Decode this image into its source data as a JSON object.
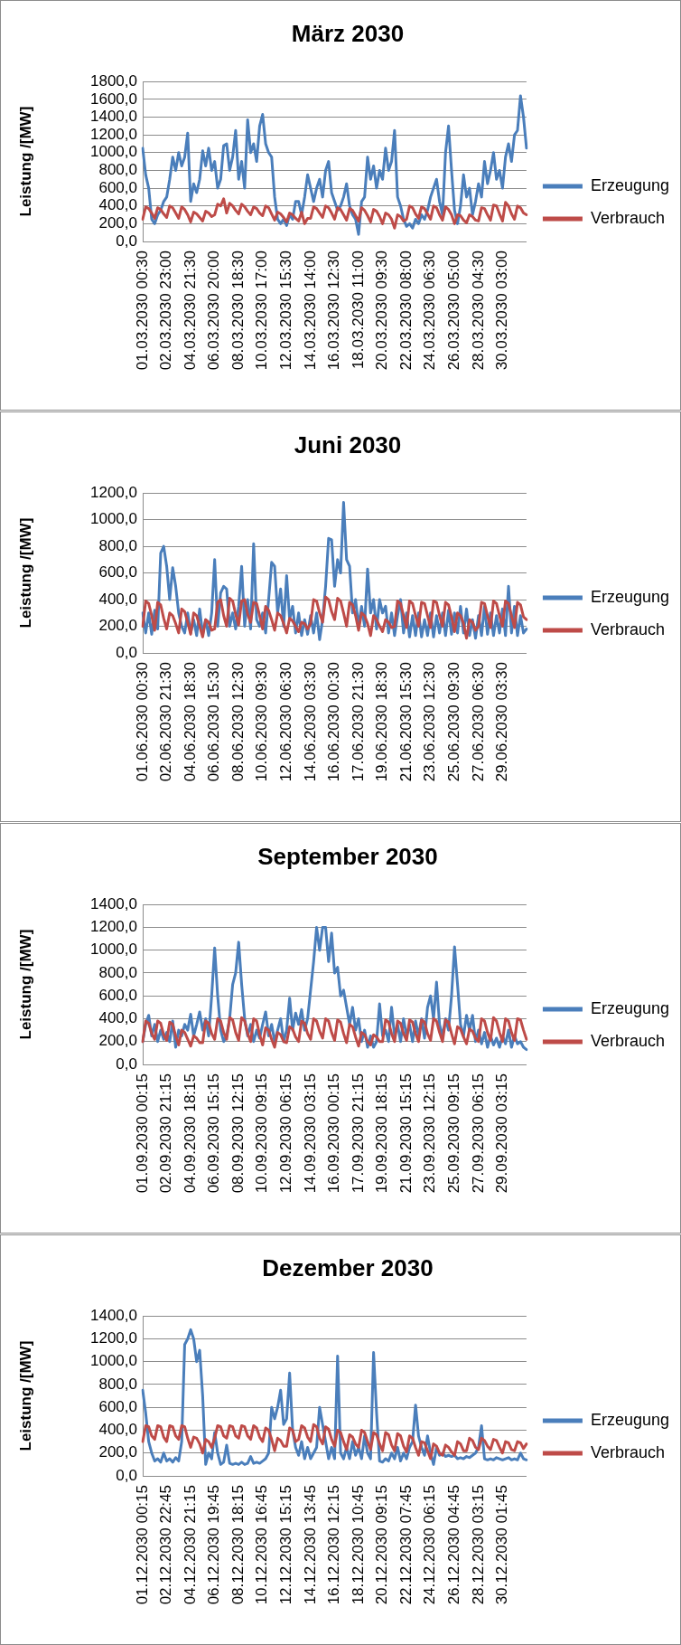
{
  "chart_data": [
    {
      "type": "line",
      "title": "März 2030",
      "ylabel": "Leistung /[MW]",
      "categories": [
        "01.03.2030 00:30",
        null,
        null,
        null,
        null,
        null,
        null,
        null,
        "02.03.2030 23:00",
        null,
        null,
        null,
        null,
        null,
        null,
        null,
        "04.03.2030 21:30",
        null,
        null,
        null,
        null,
        null,
        null,
        null,
        "06.03.2030 20:00",
        null,
        null,
        null,
        null,
        null,
        null,
        null,
        "08.03.2030 18:30",
        null,
        null,
        null,
        null,
        null,
        null,
        null,
        "10.03.2030 17:00",
        null,
        null,
        null,
        null,
        null,
        null,
        null,
        "12.03.2030 15:30",
        null,
        null,
        null,
        null,
        null,
        null,
        null,
        "14.03.2030 14:00",
        null,
        null,
        null,
        null,
        null,
        null,
        null,
        "16.03.2030 12:30",
        null,
        null,
        null,
        null,
        null,
        null,
        null,
        "18.03.2030 11:00",
        null,
        null,
        null,
        null,
        null,
        null,
        null,
        "20.03.2030 09:30",
        null,
        null,
        null,
        null,
        null,
        null,
        null,
        "22.03.2030 08:00",
        null,
        null,
        null,
        null,
        null,
        null,
        null,
        "24.03.2030 06:30",
        null,
        null,
        null,
        null,
        null,
        null,
        null,
        "26.03.2030 05:00",
        null,
        null,
        null,
        null,
        null,
        null,
        null,
        "28.03.2030 04:30",
        null,
        null,
        null,
        null,
        null,
        null,
        null,
        "30.03.2030 03:00",
        null,
        null,
        null,
        null,
        null,
        null,
        null,
        null
      ],
      "series": [
        {
          "name": "Erzeugung",
          "color": "#4a7ebb",
          "values": [
            1050,
            750,
            600,
            250,
            200,
            300,
            350,
            450,
            500,
            700,
            950,
            800,
            1000,
            850,
            950,
            1220,
            450,
            650,
            550,
            700,
            1020,
            850,
            1050,
            800,
            900,
            600,
            700,
            1080,
            1100,
            800,
            950,
            1250,
            700,
            900,
            600,
            1370,
            1000,
            1100,
            900,
            1300,
            1430,
            1100,
            1000,
            950,
            500,
            250,
            200,
            250,
            180,
            300,
            250,
            450,
            450,
            300,
            500,
            750,
            600,
            450,
            600,
            700,
            500,
            800,
            900,
            550,
            450,
            350,
            400,
            500,
            650,
            400,
            300,
            250,
            80,
            450,
            500,
            950,
            700,
            850,
            600,
            800,
            700,
            1050,
            800,
            900,
            1250,
            500,
            400,
            250,
            170,
            200,
            150,
            250,
            200,
            300,
            250,
            350,
            500,
            600,
            700,
            450,
            300,
            1000,
            1300,
            800,
            350,
            200,
            400,
            750,
            500,
            600,
            300,
            450,
            650,
            500,
            900,
            650,
            800,
            1000,
            700,
            800,
            600,
            950,
            1100,
            900,
            1200,
            1250,
            1640,
            1400,
            1050
          ]
        },
        {
          "name": "Verbrauch",
          "color": "#be4b48",
          "values": [
            250,
            390,
            370,
            320,
            260,
            380,
            360,
            310,
            270,
            400,
            380,
            320,
            260,
            390,
            360,
            300,
            220,
            330,
            310,
            270,
            230,
            340,
            320,
            280,
            300,
            420,
            400,
            480,
            320,
            430,
            400,
            350,
            310,
            420,
            390,
            340,
            300,
            390,
            370,
            320,
            290,
            400,
            380,
            310,
            240,
            330,
            310,
            270,
            220,
            320,
            300,
            260,
            230,
            330,
            200,
            260,
            260,
            390,
            370,
            320,
            270,
            400,
            380,
            320,
            250,
            380,
            360,
            300,
            240,
            370,
            350,
            290,
            230,
            380,
            350,
            290,
            220,
            360,
            340,
            280,
            200,
            320,
            300,
            250,
            150,
            300,
            280,
            230,
            250,
            400,
            380,
            310,
            260,
            390,
            370,
            310,
            250,
            400,
            380,
            300,
            240,
            390,
            360,
            300,
            200,
            300,
            290,
            240,
            210,
            300,
            280,
            240,
            230,
            380,
            370,
            300,
            240,
            410,
            400,
            310,
            230,
            440,
            400,
            310,
            250,
            400,
            380,
            320,
            300
          ]
        }
      ],
      "ylim": [
        0,
        1800
      ],
      "yticks": [
        {
          "value": 0,
          "label": "0,0"
        },
        {
          "value": 200,
          "label": "200,0"
        },
        {
          "value": 400,
          "label": "400,0"
        },
        {
          "value": 600,
          "label": "600,0"
        },
        {
          "value": 800,
          "label": "800,0"
        },
        {
          "value": 1000,
          "label": "1000,0"
        },
        {
          "value": 1200,
          "label": "1200,0"
        },
        {
          "value": 1400,
          "label": "1400,0"
        },
        {
          "value": 1600,
          "label": "1600,0"
        },
        {
          "value": 1800,
          "label": "1800,0"
        }
      ],
      "grid": "y",
      "legend": "right",
      "marker": "none",
      "line_style": "solid"
    },
    {
      "type": "line",
      "title": "Juni 2030",
      "ylabel": "Leistung /[MW]",
      "categories": [
        "01.06.2030 00:30",
        null,
        null,
        null,
        null,
        null,
        null,
        null,
        "02.06.2030 21:30",
        null,
        null,
        null,
        null,
        null,
        null,
        null,
        "04.06.2030 18:30",
        null,
        null,
        null,
        null,
        null,
        null,
        null,
        "06.06.2030 15:30",
        null,
        null,
        null,
        null,
        null,
        null,
        null,
        "08.06.2030 12:30",
        null,
        null,
        null,
        null,
        null,
        null,
        null,
        "10.06.2030 09:30",
        null,
        null,
        null,
        null,
        null,
        null,
        null,
        "12.06.2030 06:30",
        null,
        null,
        null,
        null,
        null,
        null,
        null,
        "14.06.2030 03:30",
        null,
        null,
        null,
        null,
        null,
        null,
        null,
        "16.06.2030 00:30",
        null,
        null,
        null,
        null,
        null,
        null,
        null,
        "17.06.2030 21:30",
        null,
        null,
        null,
        null,
        null,
        null,
        null,
        "19.06.2030 18:30",
        null,
        null,
        null,
        null,
        null,
        null,
        null,
        "21.06.2030 15:30",
        null,
        null,
        null,
        null,
        null,
        null,
        null,
        "23.06.2030 12:30",
        null,
        null,
        null,
        null,
        null,
        null,
        null,
        "25.06.2030 09:30",
        null,
        null,
        null,
        null,
        null,
        null,
        null,
        "27.06.2030 06:30",
        null,
        null,
        null,
        null,
        null,
        null,
        null,
        "29.06.2030 03:30",
        null,
        null,
        null,
        null,
        null,
        null,
        null,
        null
      ],
      "series": [
        {
          "name": "Erzeugung",
          "color": "#4a7ebb",
          "values": [
            300,
            150,
            300,
            140,
            320,
            180,
            750,
            800,
            650,
            400,
            640,
            500,
            300,
            200,
            150,
            300,
            150,
            250,
            130,
            330,
            140,
            250,
            130,
            300,
            700,
            200,
            450,
            500,
            480,
            200,
            300,
            180,
            350,
            650,
            200,
            400,
            180,
            820,
            250,
            200,
            300,
            150,
            400,
            680,
            650,
            300,
            480,
            200,
            580,
            250,
            350,
            150,
            300,
            130,
            250,
            140,
            280,
            150,
            300,
            100,
            250,
            500,
            860,
            850,
            500,
            700,
            600,
            1130,
            700,
            650,
            300,
            400,
            200,
            350,
            200,
            630,
            300,
            400,
            180,
            400,
            300,
            350,
            150,
            300,
            130,
            280,
            400,
            150,
            300,
            120,
            280,
            130,
            300,
            120,
            250,
            130,
            300,
            120,
            280,
            150,
            300,
            130,
            320,
            140,
            300,
            150,
            350,
            150,
            330,
            130,
            250,
            110,
            280,
            130,
            350,
            140,
            300,
            130,
            280,
            150,
            330,
            130,
            500,
            150,
            350,
            130,
            280,
            150,
            180
          ]
        },
        {
          "name": "Verbrauch",
          "color": "#be4b48",
          "values": [
            200,
            390,
            370,
            280,
            170,
            380,
            360,
            260,
            180,
            300,
            280,
            220,
            150,
            330,
            310,
            230,
            140,
            300,
            280,
            200,
            120,
            250,
            230,
            170,
            180,
            380,
            400,
            280,
            200,
            410,
            390,
            290,
            210,
            390,
            400,
            290,
            230,
            380,
            370,
            280,
            180,
            350,
            320,
            250,
            170,
            300,
            280,
            220,
            150,
            260,
            240,
            200,
            160,
            230,
            220,
            180,
            220,
            400,
            390,
            300,
            230,
            420,
            400,
            310,
            250,
            410,
            390,
            300,
            200,
            380,
            360,
            280,
            170,
            300,
            280,
            220,
            130,
            280,
            250,
            200,
            160,
            250,
            230,
            190,
            200,
            390,
            370,
            280,
            190,
            390,
            370,
            280,
            200,
            380,
            370,
            280,
            190,
            390,
            380,
            280,
            200,
            380,
            360,
            270,
            160,
            300,
            280,
            220,
            110,
            250,
            230,
            170,
            200,
            380,
            370,
            280,
            190,
            390,
            370,
            280,
            200,
            390,
            370,
            280,
            190,
            380,
            360,
            270,
            250
          ]
        }
      ],
      "ylim": [
        0,
        1200
      ],
      "yticks": [
        {
          "value": 0,
          "label": "0,0"
        },
        {
          "value": 200,
          "label": "200,0"
        },
        {
          "value": 400,
          "label": "400,0"
        },
        {
          "value": 600,
          "label": "600,0"
        },
        {
          "value": 800,
          "label": "800,0"
        },
        {
          "value": 1000,
          "label": "1000,0"
        },
        {
          "value": 1200,
          "label": "1200,0"
        }
      ],
      "grid": "y",
      "legend": "right",
      "marker": "none",
      "line_style": "solid"
    },
    {
      "type": "line",
      "title": "September 2030",
      "ylabel": "Leistung /[MW]",
      "categories": [
        "01.09.2030 00:15",
        null,
        null,
        null,
        null,
        null,
        null,
        null,
        "02.09.2030 21:15",
        null,
        null,
        null,
        null,
        null,
        null,
        null,
        "04.09.2030 18:15",
        null,
        null,
        null,
        null,
        null,
        null,
        null,
        "06.09.2030 15:15",
        null,
        null,
        null,
        null,
        null,
        null,
        null,
        "08.09.2030 12:15",
        null,
        null,
        null,
        null,
        null,
        null,
        null,
        "10.09.2030 09:15",
        null,
        null,
        null,
        null,
        null,
        null,
        null,
        "12.09.2030 06:15",
        null,
        null,
        null,
        null,
        null,
        null,
        null,
        "14.09.2030 03:15",
        null,
        null,
        null,
        null,
        null,
        null,
        null,
        "16.09.2030 00:15",
        null,
        null,
        null,
        null,
        null,
        null,
        null,
        "17.09.2030 21:15",
        null,
        null,
        null,
        null,
        null,
        null,
        null,
        "19.09.2030 18:15",
        null,
        null,
        null,
        null,
        null,
        null,
        null,
        "21.09.2030 15:15",
        null,
        null,
        null,
        null,
        null,
        null,
        null,
        "23.09.2030 12:15",
        null,
        null,
        null,
        null,
        null,
        null,
        null,
        "25.09.2030 09:15",
        null,
        null,
        null,
        null,
        null,
        null,
        null,
        "27.09.2030 06:15",
        null,
        null,
        null,
        null,
        null,
        null,
        null,
        "29.09.2030 03:15",
        null,
        null,
        null,
        null,
        null,
        null,
        null,
        null
      ],
      "series": [
        {
          "name": "Erzeugung",
          "color": "#4a7ebb",
          "values": [
            200,
            350,
            430,
            250,
            350,
            200,
            300,
            220,
            280,
            200,
            380,
            150,
            300,
            250,
            350,
            300,
            440,
            250,
            350,
            460,
            300,
            400,
            250,
            600,
            1020,
            600,
            300,
            200,
            250,
            400,
            700,
            800,
            1070,
            700,
            400,
            250,
            350,
            200,
            300,
            230,
            350,
            460,
            250,
            350,
            200,
            300,
            400,
            200,
            300,
            580,
            300,
            450,
            350,
            480,
            300,
            400,
            650,
            900,
            1200,
            1000,
            1200,
            1200,
            900,
            1150,
            800,
            850,
            600,
            650,
            500,
            350,
            500,
            300,
            400,
            200,
            300,
            150,
            250,
            150,
            200,
            530,
            250,
            300,
            200,
            500,
            250,
            350,
            200,
            400,
            250,
            350,
            200,
            380,
            250,
            400,
            230,
            500,
            600,
            400,
            720,
            350,
            250,
            400,
            300,
            600,
            1030,
            700,
            350,
            250,
            430,
            300,
            430,
            200,
            300,
            180,
            280,
            150,
            250,
            170,
            230,
            150,
            250,
            180,
            300,
            150,
            250,
            180,
            200,
            150,
            130
          ]
        },
        {
          "name": "Verbrauch",
          "color": "#be4b48",
          "values": [
            200,
            380,
            360,
            270,
            220,
            380,
            360,
            260,
            210,
            370,
            350,
            250,
            170,
            300,
            280,
            220,
            160,
            250,
            230,
            190,
            190,
            380,
            360,
            270,
            220,
            400,
            380,
            280,
            220,
            410,
            390,
            280,
            210,
            410,
            380,
            270,
            200,
            400,
            380,
            260,
            170,
            320,
            300,
            220,
            150,
            280,
            260,
            200,
            190,
            330,
            310,
            240,
            200,
            380,
            360,
            270,
            220,
            400,
            380,
            290,
            230,
            400,
            380,
            280,
            210,
            390,
            370,
            270,
            190,
            350,
            330,
            240,
            160,
            280,
            260,
            200,
            170,
            260,
            240,
            200,
            200,
            390,
            370,
            270,
            200,
            380,
            360,
            270,
            210,
            390,
            370,
            270,
            200,
            390,
            370,
            270,
            210,
            400,
            380,
            280,
            200,
            390,
            370,
            270,
            180,
            330,
            310,
            240,
            180,
            310,
            290,
            230,
            200,
            400,
            380,
            280,
            210,
            410,
            380,
            280,
            200,
            400,
            380,
            280,
            210,
            400,
            390,
            300,
            220
          ]
        }
      ],
      "ylim": [
        0,
        1400
      ],
      "yticks": [
        {
          "value": 0,
          "label": "0,0"
        },
        {
          "value": 200,
          "label": "200,0"
        },
        {
          "value": 400,
          "label": "400,0"
        },
        {
          "value": 600,
          "label": "600,0"
        },
        {
          "value": 800,
          "label": "800,0"
        },
        {
          "value": 1000,
          "label": "1000,0"
        },
        {
          "value": 1200,
          "label": "1200,0"
        },
        {
          "value": 1400,
          "label": "1400,0"
        }
      ],
      "grid": "y",
      "legend": "right",
      "marker": "none",
      "line_style": "solid"
    },
    {
      "type": "line",
      "title": "Dezember 2030",
      "ylabel": "Leistung /[MW]",
      "categories": [
        "01.12.2030 00:15",
        null,
        null,
        null,
        null,
        null,
        null,
        null,
        "02.12.2030 22:45",
        null,
        null,
        null,
        null,
        null,
        null,
        null,
        "04.12.2030 21:15",
        null,
        null,
        null,
        null,
        null,
        null,
        null,
        "06.12.2030 19:45",
        null,
        null,
        null,
        null,
        null,
        null,
        null,
        "08.12.2030 18:15",
        null,
        null,
        null,
        null,
        null,
        null,
        null,
        "10.12.2030 16:45",
        null,
        null,
        null,
        null,
        null,
        null,
        null,
        "12.12.2030 15:15",
        null,
        null,
        null,
        null,
        null,
        null,
        null,
        "14.12.2030 13:45",
        null,
        null,
        null,
        null,
        null,
        null,
        null,
        "16.12.2030 12:15",
        null,
        null,
        null,
        null,
        null,
        null,
        null,
        "18.12.2030 10:45",
        null,
        null,
        null,
        null,
        null,
        null,
        null,
        "20.12.2030 09:15",
        null,
        null,
        null,
        null,
        null,
        null,
        null,
        "22.12.2030 07:45",
        null,
        null,
        null,
        null,
        null,
        null,
        null,
        "24.12.2030 06:15",
        null,
        null,
        null,
        null,
        null,
        null,
        null,
        "26.12.2030 04:45",
        null,
        null,
        null,
        null,
        null,
        null,
        null,
        "28.12.2030 03:15",
        null,
        null,
        null,
        null,
        null,
        null,
        null,
        "30.12.2030 01:45",
        null,
        null,
        null,
        null,
        null,
        null,
        null,
        null
      ],
      "series": [
        {
          "name": "Erzeugung",
          "color": "#4a7ebb",
          "values": [
            750,
            550,
            300,
            200,
            130,
            150,
            120,
            200,
            130,
            150,
            120,
            160,
            130,
            300,
            1150,
            1200,
            1280,
            1200,
            1000,
            1100,
            700,
            100,
            200,
            150,
            380,
            200,
            100,
            120,
            270,
            110,
            100,
            110,
            100,
            120,
            100,
            110,
            170,
            110,
            120,
            110,
            130,
            150,
            200,
            600,
            500,
            600,
            750,
            450,
            500,
            900,
            400,
            250,
            180,
            300,
            150,
            250,
            150,
            200,
            250,
            600,
            450,
            300,
            150,
            250,
            150,
            1050,
            200,
            150,
            250,
            150,
            300,
            180,
            250,
            150,
            350,
            200,
            150,
            1080,
            550,
            130,
            120,
            150,
            130,
            200,
            150,
            250,
            130,
            200,
            150,
            250,
            300,
            620,
            350,
            250,
            180,
            350,
            200,
            100,
            250,
            180,
            200,
            170,
            180,
            170,
            180,
            150,
            160,
            150,
            170,
            160,
            180,
            200,
            250,
            440,
            150,
            140,
            150,
            140,
            160,
            150,
            140,
            150,
            160,
            140,
            150,
            140,
            200,
            150,
            140
          ]
        },
        {
          "name": "Verbrauch",
          "color": "#be4b48",
          "values": [
            300,
            440,
            430,
            350,
            320,
            440,
            430,
            340,
            300,
            440,
            430,
            350,
            320,
            440,
            430,
            330,
            250,
            340,
            330,
            280,
            200,
            320,
            300,
            250,
            330,
            440,
            430,
            350,
            330,
            440,
            430,
            350,
            330,
            440,
            430,
            350,
            320,
            440,
            420,
            340,
            300,
            420,
            400,
            320,
            220,
            330,
            310,
            260,
            260,
            420,
            400,
            300,
            320,
            440,
            420,
            340,
            300,
            450,
            430,
            330,
            280,
            430,
            410,
            320,
            260,
            400,
            380,
            300,
            230,
            360,
            340,
            280,
            250,
            400,
            380,
            300,
            230,
            380,
            360,
            280,
            220,
            380,
            360,
            270,
            220,
            370,
            350,
            260,
            210,
            350,
            330,
            250,
            180,
            300,
            290,
            220,
            150,
            280,
            260,
            200,
            180,
            270,
            250,
            210,
            180,
            300,
            280,
            220,
            220,
            330,
            310,
            250,
            230,
            330,
            310,
            260,
            230,
            320,
            310,
            250,
            200,
            300,
            290,
            230,
            220,
            300,
            290,
            240,
            280
          ]
        }
      ],
      "ylim": [
        0,
        1400
      ],
      "yticks": [
        {
          "value": 0,
          "label": "0,0"
        },
        {
          "value": 200,
          "label": "200,0"
        },
        {
          "value": 400,
          "label": "400,0"
        },
        {
          "value": 600,
          "label": "600,0"
        },
        {
          "value": 800,
          "label": "800,0"
        },
        {
          "value": 1000,
          "label": "1000,0"
        },
        {
          "value": 1200,
          "label": "1200,0"
        },
        {
          "value": 1400,
          "label": "1400,0"
        }
      ],
      "grid": "y",
      "legend": "right",
      "marker": "none",
      "line_style": "solid"
    }
  ]
}
